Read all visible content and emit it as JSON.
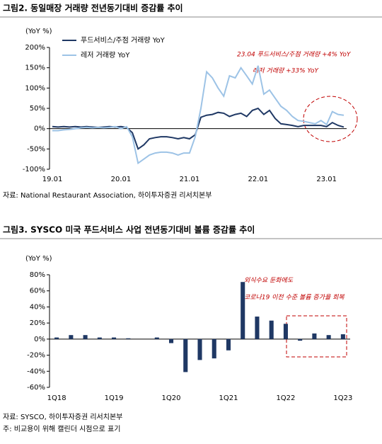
{
  "chart_data": [
    {
      "type": "line",
      "title": "그림2. 동일매장 거래량 전년동기대비 증감률 추이",
      "y_label": "(YoY %)",
      "categories": [
        "19.01",
        null,
        null,
        null,
        null,
        null,
        null,
        null,
        null,
        null,
        null,
        null,
        "20.01",
        null,
        null,
        null,
        null,
        null,
        null,
        null,
        null,
        null,
        null,
        null,
        "21.01",
        null,
        null,
        null,
        null,
        null,
        null,
        null,
        null,
        null,
        null,
        null,
        "22.01",
        null,
        null,
        null,
        null,
        null,
        null,
        null,
        null,
        null,
        null,
        null,
        "23.01",
        null,
        null,
        null
      ],
      "series": [
        {
          "name": "푸드서비스/주점 거래량 YoY",
          "color": "#1f3864",
          "values": [
            5,
            4,
            5,
            4,
            5,
            4,
            5,
            4,
            3,
            4,
            5,
            4,
            5,
            3,
            -10,
            -50,
            -40,
            -25,
            -22,
            -20,
            -20,
            -22,
            -25,
            -22,
            -25,
            -15,
            28,
            33,
            35,
            40,
            38,
            30,
            35,
            38,
            30,
            45,
            50,
            35,
            45,
            25,
            12,
            10,
            8,
            5,
            8,
            8,
            8,
            8,
            5,
            15,
            8,
            4
          ]
        },
        {
          "name": "레저 거래량 YoY",
          "color": "#9dc3e6",
          "values": [
            -5,
            -5,
            -3,
            -2,
            0,
            2,
            3,
            2,
            3,
            2,
            3,
            5,
            0,
            5,
            -20,
            -85,
            -75,
            -65,
            -60,
            -58,
            -58,
            -60,
            -65,
            -60,
            -60,
            -20,
            50,
            140,
            125,
            100,
            80,
            130,
            125,
            150,
            130,
            110,
            155,
            85,
            95,
            75,
            55,
            45,
            30,
            20,
            18,
            15,
            12,
            20,
            10,
            42,
            35,
            33
          ]
        }
      ],
      "ylim": [
        -100,
        200
      ],
      "yticks": [
        {
          "value": -100,
          "label": "-100%"
        },
        {
          "value": -50,
          "label": "-50%"
        },
        {
          "value": 0,
          "label": "0%"
        },
        {
          "value": 50,
          "label": "50%"
        },
        {
          "value": 100,
          "label": "100%"
        },
        {
          "value": 150,
          "label": "150%"
        },
        {
          "value": 200,
          "label": "200%"
        }
      ],
      "annotations": [
        "23.04 푸드서비스/주점 거래량 +4% YoY",
        "레저 거래량 +33% YoY"
      ],
      "source": "자료: National Restaurant Association, 하이투자증권 리서치본부"
    },
    {
      "type": "bar",
      "title": "그림3. SYSCO 미국 푸드서비스 사업 전년동기대비 볼륨 증감률 추이",
      "y_label": "(YoY %)",
      "categories": [
        "1Q18",
        null,
        null,
        null,
        "1Q19",
        null,
        null,
        null,
        "1Q20",
        null,
        null,
        null,
        "1Q21",
        null,
        null,
        null,
        "1Q22",
        null,
        null,
        null,
        "1Q23"
      ],
      "series": [
        {
          "name": "SYSCO",
          "color": "#1f3864",
          "values": [
            2,
            5,
            5,
            2,
            2,
            1,
            0,
            2,
            -5,
            -41,
            -26,
            -24,
            -14,
            71,
            28,
            23,
            19,
            -2,
            7,
            5,
            6
          ]
        }
      ],
      "ylim": [
        -60,
        80
      ],
      "yticks": [
        {
          "value": -60,
          "label": "-60%"
        },
        {
          "value": -40,
          "label": "-40%"
        },
        {
          "value": -20,
          "label": "-20%"
        },
        {
          "value": 0,
          "label": "0%"
        },
        {
          "value": 20,
          "label": "20%"
        },
        {
          "value": 40,
          "label": "40%"
        },
        {
          "value": 60,
          "label": "60%"
        },
        {
          "value": 80,
          "label": "80%"
        }
      ],
      "annotations": [
        "외식수요 둔화에도",
        "코로나19 이전 수준 볼륨 증가율 회복"
      ],
      "source": "자료: SYSCO, 하이투자증권 리서치본부",
      "note": "주: 비교용이 위해 캘린더 시점으로 표기"
    }
  ]
}
